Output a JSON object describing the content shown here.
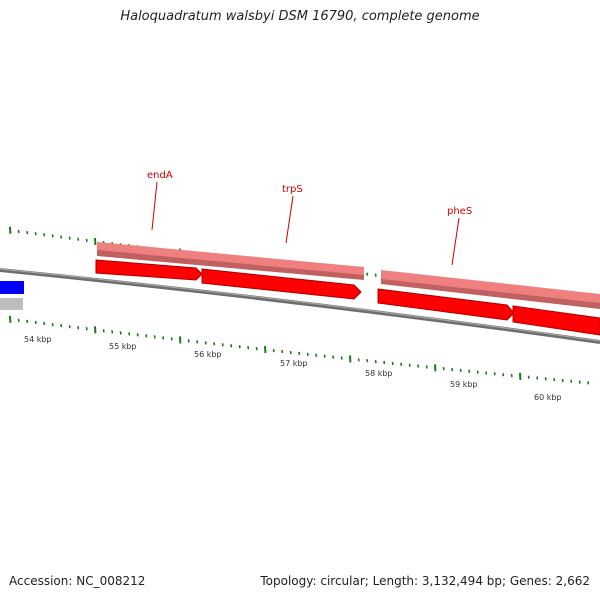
{
  "header": {
    "title": "Haloquadratum walsbyi DSM 16790, complete genome"
  },
  "footer": {
    "accession": "Accession: NC_008212",
    "stats": "Topology: circular; Length: 3,132,494 bp; Genes: 2,662"
  },
  "kbp_labels": [
    "54 kbp",
    "55 kbp",
    "56 kbp",
    "57 kbp",
    "58 kbp",
    "59 kbp",
    "60 kbp"
  ],
  "genes": [
    {
      "name": "endA",
      "color": "#ff0000"
    },
    {
      "name": "trpS",
      "color": "#ff0000"
    },
    {
      "name": "pheS",
      "color": "#ff0000"
    }
  ],
  "colors": {
    "gene_outer": "#f08080",
    "gene_inner": "#ff0000",
    "backbone": "#808080",
    "tick": "#1a7a1a",
    "blue_feature": "#0000ff",
    "grey_feature": "#c0c0c0"
  }
}
